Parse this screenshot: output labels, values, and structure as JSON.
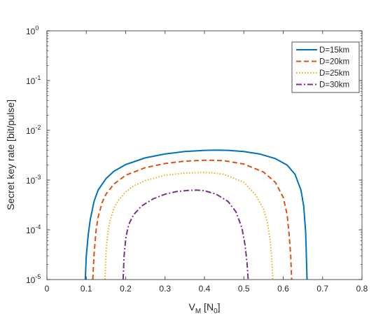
{
  "chart_data": {
    "type": "line",
    "title": "",
    "xlabel": "V_M [N_0]",
    "ylabel": "Secret key rate [bit/pulse]",
    "xlim": [
      0,
      0.8
    ],
    "ylim": [
      1e-05,
      1
    ],
    "yscale": "log",
    "grid": false,
    "legend_position": "top-right",
    "x_ticks": [
      "0",
      "0.1",
      "0.2",
      "0.3",
      "0.4",
      "0.5",
      "0.6",
      "0.7",
      "0.8"
    ],
    "y_ticks": [
      {
        "base": "10",
        "exp": "-5"
      },
      {
        "base": "10",
        "exp": "-4"
      },
      {
        "base": "10",
        "exp": "-3"
      },
      {
        "base": "10",
        "exp": "-2"
      },
      {
        "base": "10",
        "exp": "-1"
      },
      {
        "base": "10",
        "exp": "0"
      }
    ],
    "series": [
      {
        "name": "D=15km",
        "color": "#0072BD",
        "style": "solid",
        "x": [
          0.0975,
          0.1,
          0.105,
          0.11,
          0.12,
          0.13,
          0.15,
          0.17,
          0.2,
          0.25,
          0.3,
          0.35,
          0.4,
          0.43,
          0.46,
          0.5,
          0.54,
          0.58,
          0.61,
          0.63,
          0.645,
          0.652,
          0.657,
          0.6605
        ],
        "y": [
          1e-05,
          3e-05,
          8e-05,
          0.00016,
          0.00038,
          0.00063,
          0.00107,
          0.0015,
          0.00205,
          0.0028,
          0.00335,
          0.00375,
          0.00395,
          0.004,
          0.00395,
          0.00375,
          0.00335,
          0.0027,
          0.002,
          0.0013,
          0.00063,
          0.0003,
          9e-05,
          1e-05
        ]
      },
      {
        "name": "D=20km",
        "color": "#D95319",
        "style": "dashed",
        "x": [
          0.1165,
          0.12,
          0.125,
          0.13,
          0.14,
          0.15,
          0.17,
          0.2,
          0.25,
          0.3,
          0.35,
          0.4,
          0.42,
          0.45,
          0.5,
          0.55,
          0.58,
          0.6,
          0.61,
          0.615,
          0.619,
          0.6215
        ],
        "y": [
          1e-05,
          3.5e-05,
          0.0001,
          0.00018,
          0.00035,
          0.00052,
          0.00083,
          0.00125,
          0.00178,
          0.00215,
          0.0024,
          0.0025,
          0.0025,
          0.00245,
          0.0021,
          0.00145,
          0.0009,
          0.00045,
          0.0002,
          8e-05,
          3e-05,
          1e-05
        ]
      },
      {
        "name": "D=25km",
        "color": "#EDB120",
        "style": "dotted",
        "x": [
          0.1475,
          0.15,
          0.155,
          0.16,
          0.17,
          0.18,
          0.2,
          0.22,
          0.25,
          0.3,
          0.35,
          0.39,
          0.42,
          0.45,
          0.5,
          0.53,
          0.55,
          0.56,
          0.567,
          0.571,
          0.5735
        ],
        "y": [
          1e-05,
          3.5e-05,
          9e-05,
          0.00015,
          0.00027,
          0.00038,
          0.00058,
          0.00076,
          0.00098,
          0.00125,
          0.00138,
          0.00142,
          0.0014,
          0.0013,
          0.0009,
          0.0005,
          0.00026,
          0.00014,
          6e-05,
          2.5e-05,
          1e-05
        ]
      },
      {
        "name": "D=30km",
        "color": "#7E2F8E",
        "style": "dashdot",
        "x": [
          0.1935,
          0.196,
          0.2,
          0.205,
          0.21,
          0.22,
          0.24,
          0.27,
          0.3,
          0.33,
          0.36,
          0.38,
          0.4,
          0.43,
          0.46,
          0.48,
          0.495,
          0.503,
          0.508,
          0.511
        ],
        "y": [
          1e-05,
          3e-05,
          6.5e-05,
          0.000105,
          0.00014,
          0.0002,
          0.0003,
          0.00042,
          0.00052,
          0.00059,
          0.00062,
          0.00063,
          0.00061,
          0.00052,
          0.00037,
          0.00023,
          0.00011,
          5e-05,
          2.2e-05,
          1e-05
        ]
      }
    ]
  }
}
